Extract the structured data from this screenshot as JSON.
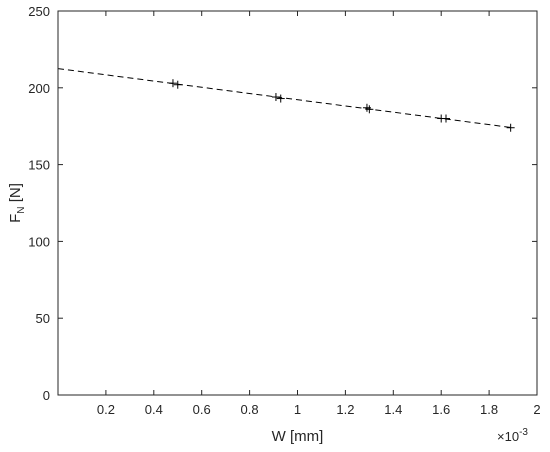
{
  "chart_data": {
    "type": "scatter",
    "title": "",
    "xlabel": "W [mm]",
    "ylabel_main": "F",
    "ylabel_sub": "N",
    "ylabel_unit": " [N]",
    "x_exponent_label": "×10",
    "x_exponent": "-3",
    "xlim": [
      0,
      2
    ],
    "ylim": [
      0,
      250
    ],
    "xticks": [
      0.2,
      0.4,
      0.6,
      0.8,
      1,
      1.2,
      1.4,
      1.6,
      1.8,
      2
    ],
    "xtick_labels": [
      "0.2",
      "0.4",
      "0.6",
      "0.8",
      "1",
      "1.2",
      "1.4",
      "1.6",
      "1.8",
      "2"
    ],
    "yticks": [
      0,
      50,
      100,
      150,
      200,
      250
    ],
    "ytick_labels": [
      "0",
      "50",
      "100",
      "150",
      "200",
      "250"
    ],
    "grid": false,
    "series": [
      {
        "marker": "plus",
        "points": [
          {
            "x": 0.48,
            "y": 203
          },
          {
            "x": 0.5,
            "y": 202
          },
          {
            "x": 0.91,
            "y": 194
          },
          {
            "x": 0.93,
            "y": 193
          },
          {
            "x": 1.29,
            "y": 187
          },
          {
            "x": 1.3,
            "y": 186
          },
          {
            "x": 1.6,
            "y": 180
          },
          {
            "x": 1.62,
            "y": 180
          },
          {
            "x": 1.89,
            "y": 174
          }
        ]
      },
      {
        "line": "dashed",
        "x": [
          0,
          1.9
        ],
        "y": [
          212.5,
          174
        ]
      }
    ],
    "colors": {
      "axis": "#262626",
      "marker": "#000000",
      "fit_line": "#000000"
    }
  }
}
